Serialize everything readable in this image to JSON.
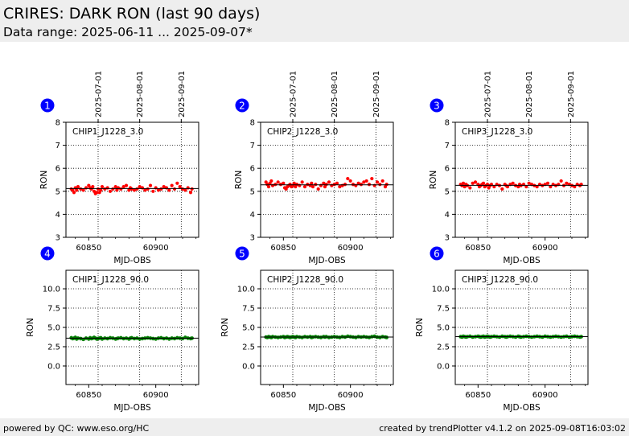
{
  "header": {
    "title": "CRIRES: DARK RON (last 90 days)",
    "subtitle": "Data range: 2025-06-11 ... 2025-09-07*"
  },
  "footer": {
    "left": "powered by QC: www.eso.org/HC",
    "right": "created by trendPlotter v4.1.2 on 2025-09-08T16:03:02"
  },
  "colors": {
    "row1_points": "#ff0000",
    "row2_points": "#008000",
    "badge": "#0000ff"
  },
  "chart_data": [
    {
      "type": "scatter",
      "badge": "1",
      "label": "CHIP1_J1228_3.0",
      "xlabel": "MJD-OBS",
      "ylabel": "RON",
      "xlim": [
        60833,
        60932
      ],
      "ylim": [
        3,
        8
      ],
      "yticks": [
        3,
        4,
        5,
        6,
        7,
        8
      ],
      "ytick_labels": [
        "3",
        "4",
        "5",
        "6",
        "7",
        "8"
      ],
      "xticks": [
        60850,
        60900
      ],
      "date_ticks": [
        {
          "x": 60857,
          "label": "2025-07-01"
        },
        {
          "x": 60888,
          "label": "2025-08-01"
        },
        {
          "x": 60919,
          "label": "2025-09-01"
        }
      ],
      "reference_line": 5.12,
      "y_center": 5.12,
      "y_spread": 0.1,
      "seed": 11,
      "x": [
        60837,
        60838,
        60839,
        60840,
        60841,
        60842,
        60844,
        60846,
        60848,
        60850,
        60851,
        60852,
        60853,
        60854,
        60855,
        60856,
        60857,
        60858,
        60859,
        60860,
        60862,
        60864,
        60866,
        60868,
        60870,
        60871,
        60872,
        60874,
        60876,
        60878,
        60880,
        60881,
        60882,
        60884,
        60886,
        60888,
        60890,
        60892,
        60894,
        60896,
        60898,
        60900,
        60902,
        60904,
        60906,
        60908,
        60910,
        60912,
        60914,
        60916,
        60918,
        60920,
        60922,
        60924,
        60926,
        60927
      ],
      "y": [
        5.1,
        5.05,
        4.95,
        5.15,
        5.05,
        5.2,
        5.1,
        5.05,
        5.15,
        5.25,
        5.15,
        5.1,
        5.2,
        5.0,
        4.9,
        4.95,
        5.1,
        4.95,
        5.05,
        5.2,
        5.1,
        5.15,
        5.0,
        5.1,
        5.2,
        5.05,
        5.15,
        5.1,
        5.2,
        5.25,
        5.05,
        5.15,
        5.1,
        5.05,
        5.1,
        5.2,
        5.15,
        5.05,
        5.1,
        5.25,
        5.0,
        5.15,
        5.05,
        5.1,
        5.2,
        5.15,
        5.05,
        5.25,
        5.1,
        5.35,
        5.2,
        5.1,
        5.05,
        5.15,
        4.95,
        5.1
      ]
    },
    {
      "type": "scatter",
      "badge": "2",
      "label": "CHIP2_J1228_3.0",
      "xlabel": "MJD-OBS",
      "ylabel": "RON",
      "xlim": [
        60833,
        60932
      ],
      "ylim": [
        3,
        8
      ],
      "yticks": [
        3,
        4,
        5,
        6,
        7,
        8
      ],
      "ytick_labels": [
        "3",
        "4",
        "5",
        "6",
        "7",
        "8"
      ],
      "xticks": [
        60850,
        60900
      ],
      "date_ticks": [
        {
          "x": 60857,
          "label": "2025-07-01"
        },
        {
          "x": 60888,
          "label": "2025-08-01"
        },
        {
          "x": 60919,
          "label": "2025-09-01"
        }
      ],
      "reference_line": 5.28,
      "y_center": 5.28,
      "y_spread": 0.1,
      "seed": 22,
      "x": [
        60837,
        60838,
        60839,
        60840,
        60841,
        60842,
        60844,
        60846,
        60848,
        60850,
        60851,
        60852,
        60853,
        60854,
        60855,
        60856,
        60857,
        60858,
        60859,
        60860,
        60862,
        60864,
        60866,
        60868,
        60870,
        60871,
        60872,
        60874,
        60876,
        60878,
        60880,
        60881,
        60882,
        60884,
        60886,
        60888,
        60890,
        60892,
        60894,
        60896,
        60898,
        60900,
        60902,
        60904,
        60906,
        60908,
        60910,
        60912,
        60914,
        60916,
        60918,
        60920,
        60922,
        60924,
        60926,
        60927
      ],
      "y": [
        5.4,
        5.3,
        5.2,
        5.35,
        5.45,
        5.25,
        5.3,
        5.4,
        5.3,
        5.35,
        5.15,
        5.1,
        5.2,
        5.25,
        5.3,
        5.2,
        5.25,
        5.35,
        5.2,
        5.3,
        5.25,
        5.4,
        5.2,
        5.3,
        5.25,
        5.35,
        5.2,
        5.3,
        5.1,
        5.25,
        5.35,
        5.2,
        5.3,
        5.4,
        5.25,
        5.3,
        5.35,
        5.2,
        5.25,
        5.3,
        5.55,
        5.45,
        5.3,
        5.25,
        5.35,
        5.3,
        5.4,
        5.45,
        5.3,
        5.55,
        5.25,
        5.4,
        5.3,
        5.45,
        5.2,
        5.3
      ]
    },
    {
      "type": "scatter",
      "badge": "3",
      "label": "CHIP3_J1228_3.0",
      "xlabel": "MJD-OBS",
      "ylabel": "RON",
      "xlim": [
        60833,
        60932
      ],
      "ylim": [
        3,
        8
      ],
      "yticks": [
        3,
        4,
        5,
        6,
        7,
        8
      ],
      "ytick_labels": [
        "3",
        "4",
        "5",
        "6",
        "7",
        "8"
      ],
      "xticks": [
        60850,
        60900
      ],
      "date_ticks": [
        {
          "x": 60857,
          "label": "2025-07-01"
        },
        {
          "x": 60888,
          "label": "2025-08-01"
        },
        {
          "x": 60919,
          "label": "2025-09-01"
        }
      ],
      "reference_line": 5.26,
      "y_center": 5.26,
      "y_spread": 0.08,
      "seed": 33,
      "x": [
        60837,
        60838,
        60839,
        60840,
        60841,
        60842,
        60844,
        60846,
        60848,
        60850,
        60851,
        60852,
        60853,
        60854,
        60855,
        60856,
        60857,
        60858,
        60859,
        60860,
        60862,
        60864,
        60866,
        60868,
        60870,
        60871,
        60872,
        60874,
        60876,
        60878,
        60880,
        60881,
        60882,
        60884,
        60886,
        60888,
        60890,
        60892,
        60894,
        60896,
        60898,
        60900,
        60902,
        60904,
        60906,
        60908,
        60910,
        60912,
        60914,
        60916,
        60918,
        60920,
        60922,
        60924,
        60926,
        60927
      ],
      "y": [
        5.3,
        5.25,
        5.35,
        5.2,
        5.3,
        5.25,
        5.15,
        5.35,
        5.4,
        5.3,
        5.2,
        5.25,
        5.3,
        5.35,
        5.2,
        5.25,
        5.3,
        5.15,
        5.25,
        5.3,
        5.2,
        5.3,
        5.25,
        5.1,
        5.3,
        5.25,
        5.2,
        5.3,
        5.35,
        5.25,
        5.2,
        5.3,
        5.25,
        5.3,
        5.2,
        5.35,
        5.3,
        5.25,
        5.2,
        5.3,
        5.25,
        5.3,
        5.35,
        5.2,
        5.3,
        5.25,
        5.3,
        5.45,
        5.25,
        5.35,
        5.3,
        5.25,
        5.2,
        5.3,
        5.25,
        5.3
      ]
    },
    {
      "type": "scatter",
      "badge": "4",
      "label": "CHIP1_J1228_90.0",
      "xlabel": "MJD-OBS",
      "ylabel": "RON",
      "xlim": [
        60833,
        60932
      ],
      "ylim": [
        -2.4,
        12.4
      ],
      "yticks": [
        0,
        2.5,
        5,
        7.5,
        10
      ],
      "ytick_labels": [
        "0.0",
        "2.5",
        "5.0",
        "7.5",
        "10.0"
      ],
      "xticks": [
        60850,
        60900
      ],
      "date_ticks": [
        {
          "x": 60857,
          "label": "2025-07-01"
        },
        {
          "x": 60888,
          "label": "2025-08-01"
        },
        {
          "x": 60919,
          "label": "2025-09-01"
        }
      ],
      "reference_line": 3.6,
      "y_center": 3.6,
      "y_spread": 0.1,
      "seed": 44,
      "x": [
        60837,
        60838,
        60839,
        60840,
        60841,
        60842,
        60844,
        60846,
        60848,
        60850,
        60851,
        60852,
        60853,
        60854,
        60855,
        60856,
        60857,
        60858,
        60859,
        60860,
        60862,
        60864,
        60866,
        60868,
        60870,
        60871,
        60872,
        60874,
        60876,
        60878,
        60880,
        60881,
        60882,
        60884,
        60886,
        60888,
        60890,
        60892,
        60894,
        60896,
        60898,
        60900,
        60902,
        60904,
        60906,
        60908,
        60910,
        60912,
        60914,
        60916,
        60918,
        60920,
        60922,
        60924,
        60926,
        60927
      ],
      "y": [
        3.65,
        3.55,
        3.6,
        3.7,
        3.5,
        3.6,
        3.55,
        3.45,
        3.6,
        3.5,
        3.65,
        3.55,
        3.6,
        3.7,
        3.6,
        3.5,
        3.55,
        3.6,
        3.65,
        3.5,
        3.6,
        3.55,
        3.65,
        3.6,
        3.5,
        3.55,
        3.6,
        3.65,
        3.55,
        3.6,
        3.5,
        3.6,
        3.65,
        3.55,
        3.6,
        3.5,
        3.55,
        3.6,
        3.65,
        3.6,
        3.55,
        3.5,
        3.6,
        3.65,
        3.55,
        3.6,
        3.5,
        3.6,
        3.55,
        3.65,
        3.6,
        3.55,
        3.7,
        3.6,
        3.55,
        3.6
      ]
    },
    {
      "type": "scatter",
      "badge": "5",
      "label": "CHIP2_J1228_90.0",
      "xlabel": "MJD-OBS",
      "ylabel": "RON",
      "xlim": [
        60833,
        60932
      ],
      "ylim": [
        -2.4,
        12.4
      ],
      "yticks": [
        0,
        2.5,
        5,
        7.5,
        10
      ],
      "ytick_labels": [
        "0.0",
        "2.5",
        "5.0",
        "7.5",
        "10.0"
      ],
      "xticks": [
        60850,
        60900
      ],
      "date_ticks": [
        {
          "x": 60857,
          "label": "2025-07-01"
        },
        {
          "x": 60888,
          "label": "2025-08-01"
        },
        {
          "x": 60919,
          "label": "2025-09-01"
        }
      ],
      "reference_line": 3.75,
      "y_center": 3.75,
      "y_spread": 0.08,
      "seed": 55,
      "x": [
        60837,
        60838,
        60839,
        60840,
        60841,
        60842,
        60844,
        60846,
        60848,
        60850,
        60851,
        60852,
        60853,
        60854,
        60855,
        60856,
        60857,
        60858,
        60859,
        60860,
        60862,
        60864,
        60866,
        60868,
        60870,
        60871,
        60872,
        60874,
        60876,
        60878,
        60880,
        60881,
        60882,
        60884,
        60886,
        60888,
        60890,
        60892,
        60894,
        60896,
        60898,
        60900,
        60902,
        60904,
        60906,
        60908,
        60910,
        60912,
        60914,
        60916,
        60918,
        60920,
        60922,
        60924,
        60926,
        60927
      ],
      "y": [
        3.75,
        3.7,
        3.8,
        3.75,
        3.7,
        3.8,
        3.75,
        3.7,
        3.75,
        3.8,
        3.7,
        3.75,
        3.8,
        3.75,
        3.7,
        3.75,
        3.8,
        3.75,
        3.7,
        3.8,
        3.75,
        3.7,
        3.8,
        3.75,
        3.8,
        3.7,
        3.75,
        3.8,
        3.75,
        3.7,
        3.8,
        3.75,
        3.8,
        3.7,
        3.75,
        3.8,
        3.75,
        3.7,
        3.8,
        3.75,
        3.85,
        3.8,
        3.75,
        3.7,
        3.8,
        3.75,
        3.8,
        3.75,
        3.7,
        3.8,
        3.85,
        3.75,
        3.7,
        3.8,
        3.75,
        3.7
      ]
    },
    {
      "type": "scatter",
      "badge": "6",
      "label": "CHIP3_J1228_90.0",
      "xlabel": "MJD-OBS",
      "ylabel": "RON",
      "xlim": [
        60833,
        60932
      ],
      "ylim": [
        -2.4,
        12.4
      ],
      "yticks": [
        0,
        2.5,
        5,
        7.5,
        10
      ],
      "ytick_labels": [
        "0.0",
        "2.5",
        "5.0",
        "7.5",
        "10.0"
      ],
      "xticks": [
        60850,
        60900
      ],
      "date_ticks": [
        {
          "x": 60857,
          "label": "2025-07-01"
        },
        {
          "x": 60888,
          "label": "2025-08-01"
        },
        {
          "x": 60919,
          "label": "2025-09-01"
        }
      ],
      "reference_line": 3.8,
      "y_center": 3.8,
      "y_spread": 0.08,
      "seed": 66,
      "x": [
        60837,
        60838,
        60839,
        60840,
        60841,
        60842,
        60844,
        60846,
        60848,
        60850,
        60851,
        60852,
        60853,
        60854,
        60855,
        60856,
        60857,
        60858,
        60859,
        60860,
        60862,
        60864,
        60866,
        60868,
        60870,
        60871,
        60872,
        60874,
        60876,
        60878,
        60880,
        60881,
        60882,
        60884,
        60886,
        60888,
        60890,
        60892,
        60894,
        60896,
        60898,
        60900,
        60902,
        60904,
        60906,
        60908,
        60910,
        60912,
        60914,
        60916,
        60918,
        60920,
        60922,
        60924,
        60926,
        60927
      ],
      "y": [
        3.8,
        3.75,
        3.85,
        3.8,
        3.75,
        3.8,
        3.85,
        3.75,
        3.8,
        3.85,
        3.8,
        3.75,
        3.8,
        3.85,
        3.75,
        3.8,
        3.85,
        3.8,
        3.75,
        3.8,
        3.85,
        3.8,
        3.75,
        3.85,
        3.8,
        3.75,
        3.8,
        3.85,
        3.8,
        3.75,
        3.85,
        3.8,
        3.75,
        3.8,
        3.85,
        3.8,
        3.75,
        3.8,
        3.85,
        3.8,
        3.75,
        3.85,
        3.8,
        3.75,
        3.8,
        3.85,
        3.8,
        3.75,
        3.8,
        3.85,
        3.75,
        3.8,
        3.85,
        3.8,
        3.75,
        3.8
      ]
    }
  ]
}
